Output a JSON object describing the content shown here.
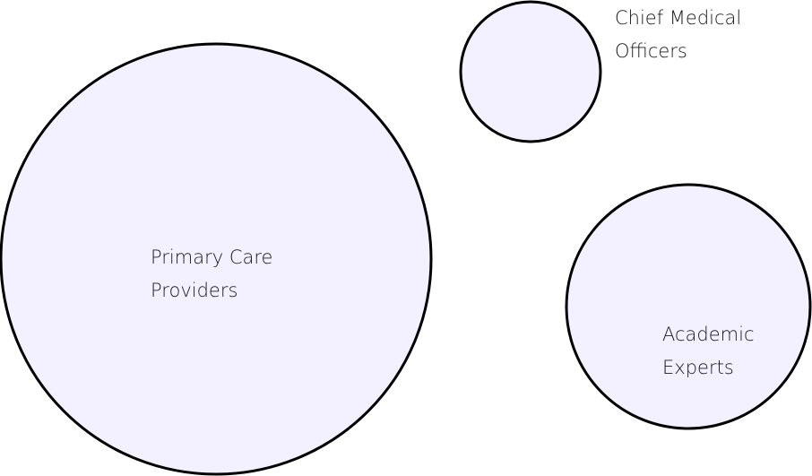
{
  "diagram": {
    "style": {
      "circle_fill": "#f3f1ff",
      "circle_stroke": "#000000",
      "text_color": "#1a1a1a"
    },
    "nodes": [
      {
        "id": "primary-care-providers",
        "lines": [
          "Primary Care",
          "Providers"
        ]
      },
      {
        "id": "chief-medical-officers",
        "lines": [
          "Chief Medical",
          "Officers"
        ]
      },
      {
        "id": "academic-experts",
        "lines": [
          "Academic",
          "Experts"
        ]
      }
    ]
  }
}
